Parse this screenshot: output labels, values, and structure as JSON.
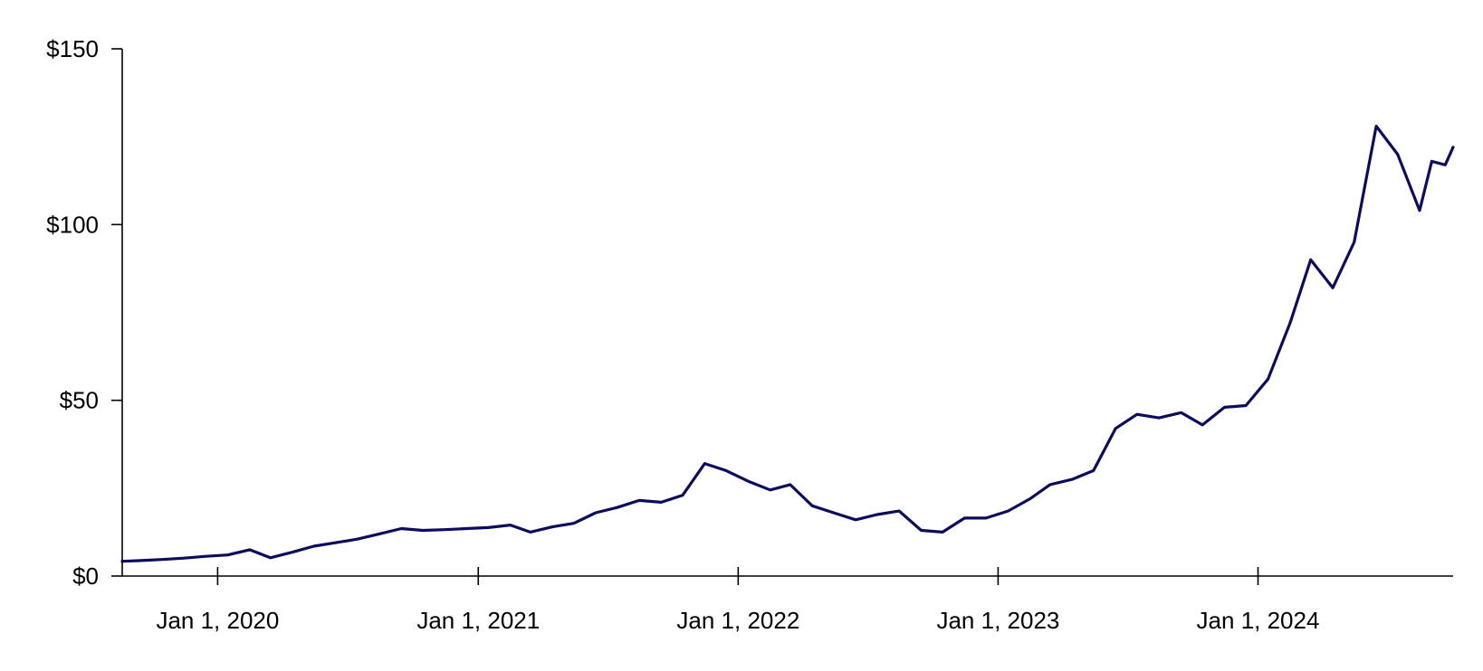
{
  "chart_data": {
    "type": "line",
    "title": "",
    "xlabel": "",
    "ylabel": "",
    "x_range": [
      "2019-08-20",
      "2024-10-01"
    ],
    "ylim": [
      0,
      150
    ],
    "grid": false,
    "legend": "none",
    "y_ticks": [
      {
        "value": 0,
        "label": "$0"
      },
      {
        "value": 50,
        "label": "$50"
      },
      {
        "value": 100,
        "label": "$100"
      },
      {
        "value": 150,
        "label": "$150"
      }
    ],
    "x_ticks": [
      {
        "date": "2020-01-01",
        "label": "Jan 1, 2020"
      },
      {
        "date": "2021-01-01",
        "label": "Jan 1, 2021"
      },
      {
        "date": "2022-01-01",
        "label": "Jan 1, 2022"
      },
      {
        "date": "2023-01-01",
        "label": "Jan 1, 2023"
      },
      {
        "date": "2024-01-01",
        "label": "Jan 1, 2024"
      }
    ],
    "colors": {
      "series": "#0c0c5c",
      "axis": "#000000"
    },
    "series": [
      {
        "name": "",
        "points": [
          [
            "2019-08-20",
            4.2
          ],
          [
            "2019-09-15",
            4.4
          ],
          [
            "2019-10-15",
            4.7
          ],
          [
            "2019-11-15",
            5.1
          ],
          [
            "2019-12-15",
            5.6
          ],
          [
            "2020-01-15",
            6.0
          ],
          [
            "2020-02-15",
            7.5
          ],
          [
            "2020-03-15",
            5.2
          ],
          [
            "2020-04-15",
            6.8
          ],
          [
            "2020-05-15",
            8.5
          ],
          [
            "2020-06-15",
            9.5
          ],
          [
            "2020-07-15",
            10.5
          ],
          [
            "2020-08-15",
            12.0
          ],
          [
            "2020-09-15",
            13.5
          ],
          [
            "2020-10-15",
            13.0
          ],
          [
            "2020-11-15",
            13.2
          ],
          [
            "2020-12-15",
            13.5
          ],
          [
            "2021-01-15",
            13.8
          ],
          [
            "2021-02-15",
            14.5
          ],
          [
            "2021-03-15",
            12.5
          ],
          [
            "2021-04-15",
            14.0
          ],
          [
            "2021-05-15",
            15.0
          ],
          [
            "2021-06-15",
            18.0
          ],
          [
            "2021-07-15",
            19.5
          ],
          [
            "2021-08-15",
            21.5
          ],
          [
            "2021-09-15",
            21.0
          ],
          [
            "2021-10-15",
            23.0
          ],
          [
            "2021-11-15",
            32.0
          ],
          [
            "2021-12-15",
            30.0
          ],
          [
            "2022-01-15",
            27.0
          ],
          [
            "2022-02-15",
            24.5
          ],
          [
            "2022-03-15",
            26.0
          ],
          [
            "2022-04-15",
            20.0
          ],
          [
            "2022-05-15",
            18.0
          ],
          [
            "2022-06-15",
            16.0
          ],
          [
            "2022-07-15",
            17.5
          ],
          [
            "2022-08-15",
            18.5
          ],
          [
            "2022-09-15",
            13.0
          ],
          [
            "2022-10-15",
            12.5
          ],
          [
            "2022-11-15",
            16.5
          ],
          [
            "2022-12-15",
            16.5
          ],
          [
            "2023-01-15",
            18.5
          ],
          [
            "2023-02-15",
            22.0
          ],
          [
            "2023-03-15",
            26.0
          ],
          [
            "2023-04-15",
            27.5
          ],
          [
            "2023-05-15",
            30.0
          ],
          [
            "2023-06-15",
            42.0
          ],
          [
            "2023-07-15",
            46.0
          ],
          [
            "2023-08-15",
            45.0
          ],
          [
            "2023-09-15",
            46.5
          ],
          [
            "2023-10-15",
            43.0
          ],
          [
            "2023-11-15",
            48.0
          ],
          [
            "2023-12-15",
            48.5
          ],
          [
            "2024-01-15",
            56.0
          ],
          [
            "2024-02-15",
            72.0
          ],
          [
            "2024-03-15",
            90.0
          ],
          [
            "2024-04-15",
            82.0
          ],
          [
            "2024-05-15",
            95.0
          ],
          [
            "2024-06-15",
            128.0
          ],
          [
            "2024-07-15",
            120.0
          ],
          [
            "2024-08-15",
            104.0
          ],
          [
            "2024-09-01",
            118.0
          ],
          [
            "2024-09-20",
            117.0
          ],
          [
            "2024-10-01",
            122.0
          ]
        ]
      }
    ]
  }
}
